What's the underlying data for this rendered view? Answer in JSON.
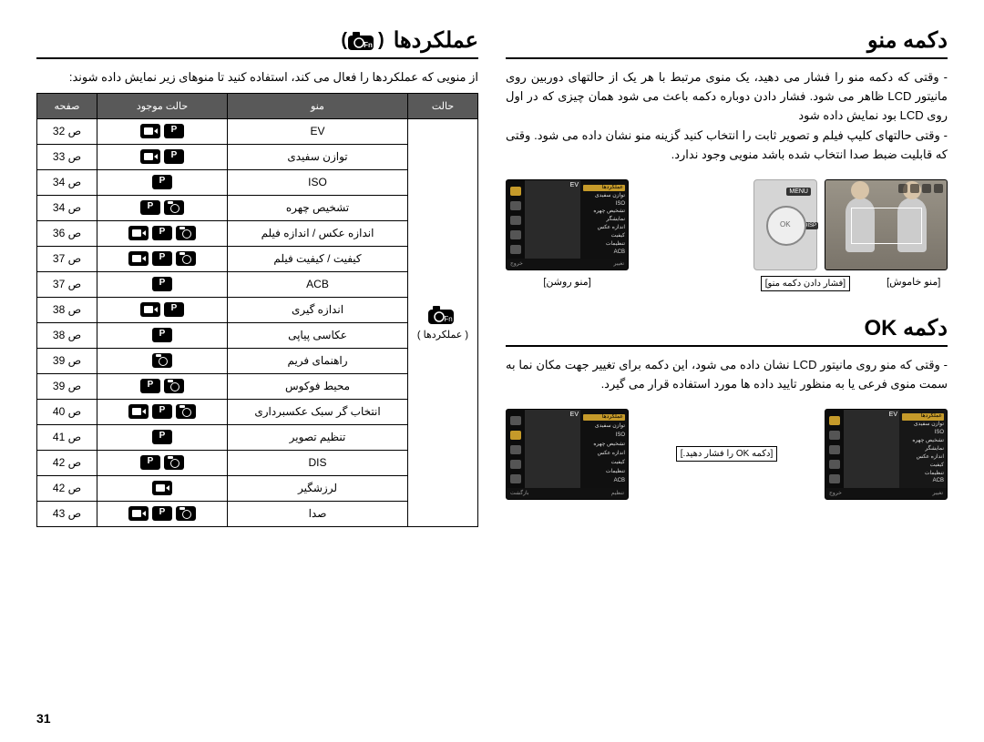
{
  "right": {
    "title_menu": "دکمه منو",
    "menu_paragraphs": [
      "وقتی که دکمه منو را فشار می دهید، یک منوی مرتبط با هر یک از حالتهای دوربین روی مانیتور LCD ظاهر می شود. فشار دادن دوباره دکمه باعث می شود همان چیزی که در اول روی LCD بود نمایش داده شود",
      "وقتی حالتهای کلیپ فیلم و تصویر ثابت را انتخاب کنید گزینه منو نشان داده می شود. وقتی که قابلیت ضبط صدا انتخاب شده باشد منویی وجود ندارد."
    ],
    "caption_off": "[منو خاموش]",
    "caption_on": "[منو روشن]",
    "callout_press": "[فشار دادن دکمه منو]",
    "title_ok": "دکمه OK",
    "ok_paragraph": "وقتی که منو روی مانیتور LCD نشان داده می شود، این دکمه برای تغییر جهت مکان نما به سمت منوی فرعی یا به منظور تایید داده ها مورد استفاده قرار می گیرد.",
    "callout_ok": "[دکمه OK را فشار دهید.]",
    "lcd_menu": {
      "top": "EV",
      "items": [
        "عملکردها",
        "توازن سفیدی",
        "ISO",
        "تشخیص چهره",
        "نمایشگر",
        "اندازه عکس",
        "کیفیت",
        "تنظیمات",
        "ACB"
      ],
      "bottom_right": "خروج",
      "bottom_left": "تغییر"
    },
    "lcd_menu2": {
      "top": "EV",
      "items": [
        "عملکردها",
        "توازن سفیدی",
        "ISO",
        "تشخیص چهره",
        "اندازه عکس",
        "کیفیت",
        "تنظیمات",
        "ACB"
      ],
      "bottom_right": "بازگشت",
      "bottom_left": "تنظیم"
    }
  },
  "left": {
    "title_fn": "عملکردها",
    "fn_intro": "از منویی که عملکردها را فعال می کند، استفاده کنید تا منوهای زیر نمایش داده شوند:",
    "table": {
      "headers": {
        "mode": "حالت",
        "menu": "منو",
        "avail": "حالت موجود",
        "page": "صفحه"
      },
      "mode_label": "( عملکردها )",
      "rows": [
        {
          "menu": "EV",
          "modes": [
            "p",
            "vid"
          ],
          "page": "ص 32"
        },
        {
          "menu": "توازن سفیدی",
          "modes": [
            "p",
            "vid"
          ],
          "page": "ص 33"
        },
        {
          "menu": "ISO",
          "modes": [
            "p"
          ],
          "page": "ص 34"
        },
        {
          "menu": "تشخیص چهره",
          "modes": [
            "cam",
            "p"
          ],
          "page": "ص 34"
        },
        {
          "menu": "اندازه عکس / اندازه فیلم",
          "modes": [
            "cam",
            "p",
            "vid"
          ],
          "page": "ص 36"
        },
        {
          "menu": "کیفیت / کیفیت فیلم",
          "modes": [
            "cam",
            "p",
            "vid"
          ],
          "page": "ص 37"
        },
        {
          "menu": "ACB",
          "modes": [
            "p"
          ],
          "page": "ص 37"
        },
        {
          "menu": "اندازه گیری",
          "modes": [
            "p",
            "vid"
          ],
          "page": "ص 38"
        },
        {
          "menu": "عکاسی پیاپی",
          "modes": [
            "p"
          ],
          "page": "ص 38"
        },
        {
          "menu": "راهنمای فریم",
          "modes": [
            "cam"
          ],
          "page": "ص 39"
        },
        {
          "menu": "محیط فوکوس",
          "modes": [
            "cam",
            "p"
          ],
          "page": "ص 39"
        },
        {
          "menu": "انتخاب گر سبک عکسبرداری",
          "modes": [
            "cam",
            "p",
            "vid"
          ],
          "page": "ص 40"
        },
        {
          "menu": "تنظیم تصویر",
          "modes": [
            "p"
          ],
          "page": "ص 41"
        },
        {
          "menu": "DIS",
          "modes": [
            "cam",
            "p"
          ],
          "page": "ص 42"
        },
        {
          "menu": "لرزشگیر",
          "modes": [
            "vid"
          ],
          "page": "ص 42"
        },
        {
          "menu": "صدا",
          "modes": [
            "cam",
            "p",
            "vid"
          ],
          "page": "ص 43"
        }
      ]
    }
  },
  "page_number": "31"
}
